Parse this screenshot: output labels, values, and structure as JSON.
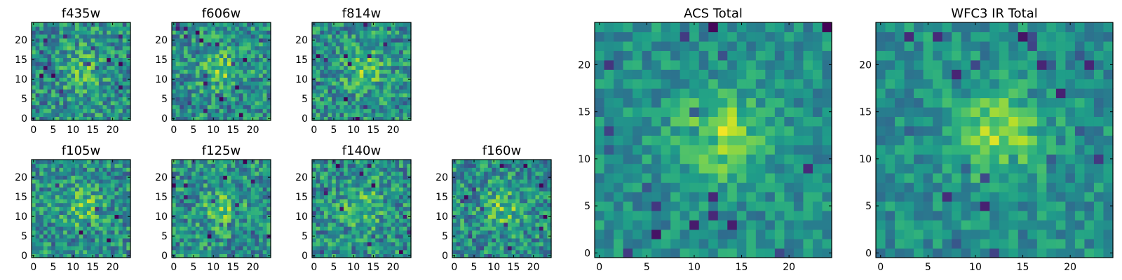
{
  "chart_data": [
    {
      "type": "heatmap",
      "title": "f435w",
      "xticks": [
        "0",
        "5",
        "10",
        "15",
        "20"
      ],
      "yticks": [
        "0",
        "5",
        "10",
        "15",
        "20"
      ],
      "xlim": [
        0,
        25
      ],
      "ylim": [
        0,
        25
      ],
      "colormap": "viridis",
      "grid": false
    },
    {
      "type": "heatmap",
      "title": "f606w",
      "xticks": [
        "0",
        "5",
        "10",
        "15",
        "20"
      ],
      "yticks": [
        "0",
        "5",
        "10",
        "15",
        "20"
      ],
      "xlim": [
        0,
        25
      ],
      "ylim": [
        0,
        25
      ],
      "colormap": "viridis",
      "grid": false
    },
    {
      "type": "heatmap",
      "title": "f814w",
      "xticks": [
        "0",
        "5",
        "10",
        "15",
        "20"
      ],
      "yticks": [
        "0",
        "5",
        "10",
        "15",
        "20"
      ],
      "xlim": [
        0,
        25
      ],
      "ylim": [
        0,
        25
      ],
      "colormap": "viridis",
      "grid": false
    },
    {
      "type": "heatmap",
      "title": "f105w",
      "xticks": [
        "0",
        "5",
        "10",
        "15",
        "20"
      ],
      "yticks": [
        "0",
        "5",
        "10",
        "15",
        "20"
      ],
      "xlim": [
        0,
        25
      ],
      "ylim": [
        0,
        25
      ],
      "colormap": "viridis",
      "grid": false
    },
    {
      "type": "heatmap",
      "title": "f125w",
      "xticks": [
        "0",
        "5",
        "10",
        "15",
        "20"
      ],
      "yticks": [
        "0",
        "5",
        "10",
        "15",
        "20"
      ],
      "xlim": [
        0,
        25
      ],
      "ylim": [
        0,
        25
      ],
      "colormap": "viridis",
      "grid": false
    },
    {
      "type": "heatmap",
      "title": "f140w",
      "xticks": [
        "0",
        "5",
        "10",
        "15",
        "20"
      ],
      "yticks": [
        "0",
        "5",
        "10",
        "15",
        "20"
      ],
      "xlim": [
        0,
        25
      ],
      "ylim": [
        0,
        25
      ],
      "colormap": "viridis",
      "grid": false
    },
    {
      "type": "heatmap",
      "title": "f160w",
      "xticks": [
        "0",
        "5",
        "10",
        "15",
        "20"
      ],
      "yticks": [
        "0",
        "5",
        "10",
        "15",
        "20"
      ],
      "xlim": [
        0,
        25
      ],
      "ylim": [
        0,
        25
      ],
      "colormap": "viridis",
      "grid": false
    },
    {
      "type": "heatmap",
      "title": "ACS Total",
      "xticks": [
        "0",
        "5",
        "10",
        "15",
        "20"
      ],
      "yticks": [
        "0",
        "5",
        "10",
        "15",
        "20"
      ],
      "xlim": [
        0,
        25
      ],
      "ylim": [
        0,
        25
      ],
      "colormap": "viridis",
      "grid": false
    },
    {
      "type": "heatmap",
      "title": "WFC3 IR Total",
      "xticks": [
        "0",
        "5",
        "10",
        "15",
        "20"
      ],
      "yticks": [
        "0",
        "5",
        "10",
        "15",
        "20"
      ],
      "xlim": [
        0,
        25
      ],
      "ylim": [
        0,
        25
      ],
      "colormap": "viridis",
      "grid": false
    }
  ]
}
